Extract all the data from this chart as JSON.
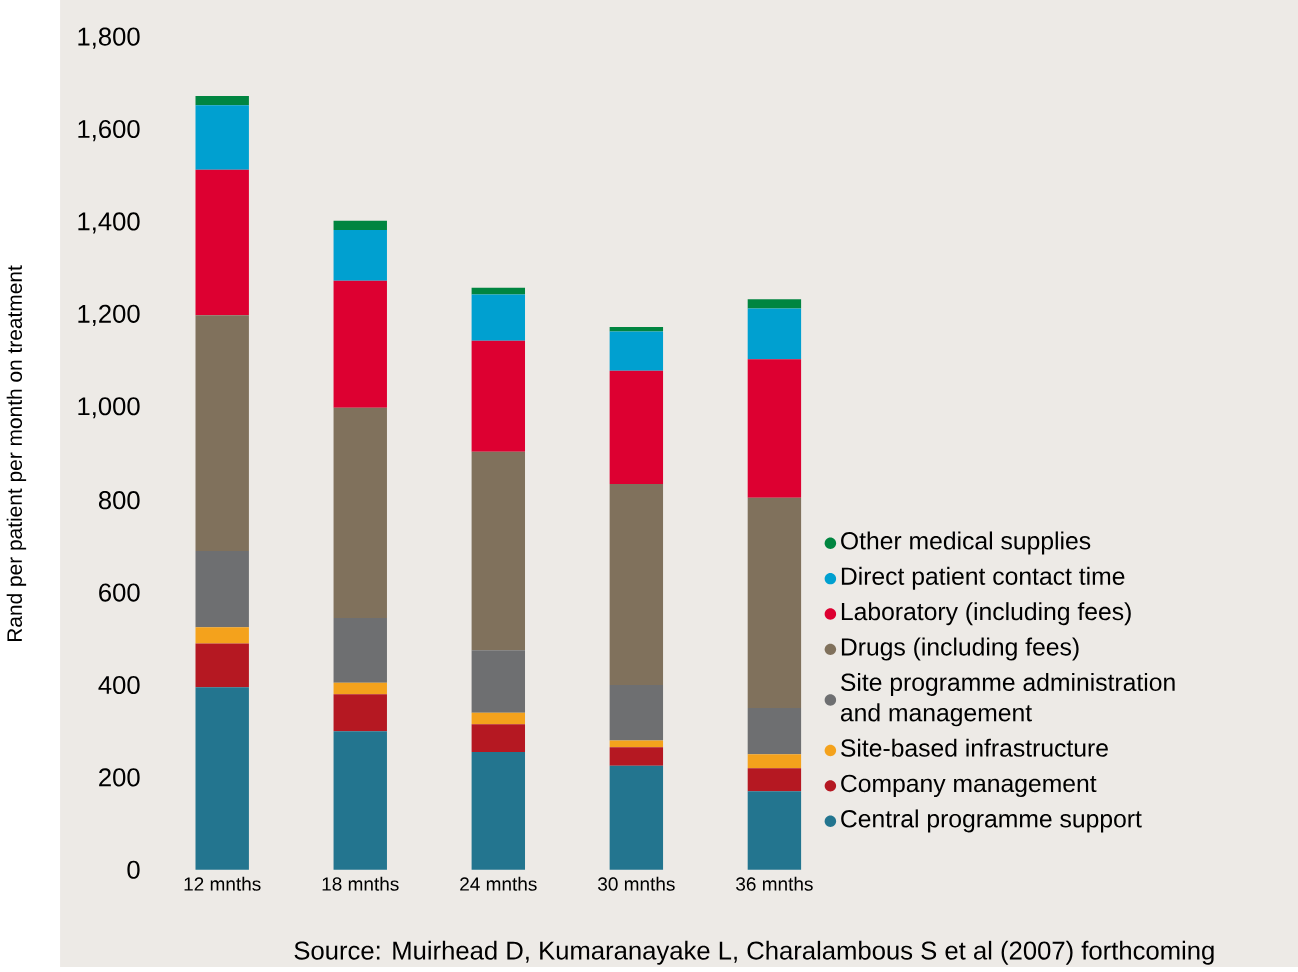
{
  "chart_data": {
    "type": "bar",
    "stacked": true,
    "ylabel": "Rand per patient per month on treatment",
    "categories": [
      "12 mnths",
      "18 mnths",
      "24 mnths",
      "30 mnths",
      "36 mnths"
    ],
    "series": [
      {
        "name": "Central programme support",
        "color": "#23758f",
        "values": [
          395,
          300,
          255,
          225,
          170
        ]
      },
      {
        "name": "Company management",
        "color": "#b51822",
        "values": [
          95,
          80,
          60,
          40,
          50
        ]
      },
      {
        "name": "Site-based infrastructure",
        "color": "#f4a21c",
        "values": [
          35,
          25,
          25,
          15,
          30
        ]
      },
      {
        "name": "Site programme administration and management",
        "color": "#6e6f71",
        "values": [
          165,
          140,
          135,
          120,
          100
        ]
      },
      {
        "name": "Drugs (including fees)",
        "color": "#80715c",
        "values": [
          510,
          455,
          430,
          435,
          455
        ]
      },
      {
        "name": "Laboratory (including fees)",
        "color": "#dd0031",
        "values": [
          315,
          275,
          240,
          245,
          300
        ]
      },
      {
        "name": "Direct patient contact time",
        "color": "#00a0d0",
        "values": [
          140,
          110,
          100,
          85,
          110
        ]
      },
      {
        "name": "Other medical supplies",
        "color": "#008540",
        "values": [
          20,
          20,
          15,
          10,
          20
        ]
      }
    ],
    "ylim": [
      0,
      1800
    ],
    "yticks": [
      0,
      200,
      400,
      600,
      800,
      {
        "value": 1000,
        "label": "1,000"
      },
      {
        "value": 1200,
        "label": "1,200"
      },
      {
        "value": 1400,
        "label": "1,400"
      },
      {
        "value": 1600,
        "label": "1,600"
      },
      {
        "value": 1800,
        "label": "1,800"
      }
    ],
    "legend": "right",
    "annotations": [
      "Source: Muirhead D, Kumaranayake L, Charalambous S et al (2007) forthcoming"
    ]
  }
}
